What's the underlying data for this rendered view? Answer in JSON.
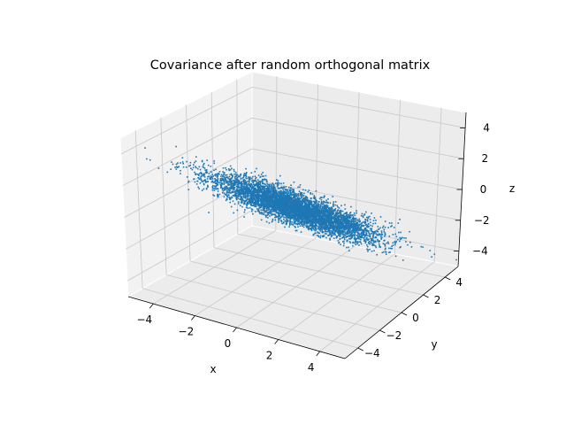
{
  "chart_data": {
    "type": "scatter",
    "projection": "3d",
    "title": "Covariance after random orthogonal matrix",
    "xlabel": "x",
    "ylabel": "y",
    "zlabel": "z",
    "xlim": [
      -5.2,
      5.2
    ],
    "ylim": [
      -5.2,
      5.2
    ],
    "zlim": [
      -5.0,
      5.0
    ],
    "x_ticks": [
      "−4",
      "−2",
      "0",
      "2",
      "4"
    ],
    "y_ticks": [
      "−4",
      "−2",
      "0",
      "2",
      "4"
    ],
    "z_ticks": [
      "−4",
      "−2",
      "0",
      "2",
      "4"
    ],
    "grid": true,
    "point_color": "#1f77b4",
    "point_count_approx": 10000,
    "distribution": {
      "description": "elongated 3D Gaussian cloud; principal direction runs from (x≈-5, y≈-5, z≈+4.5) to (x≈+5, y≈+5, z≈-4.5)",
      "principal_axis_endpoints": [
        [
          -5.0,
          -5.0,
          4.6
        ],
        [
          5.0,
          5.0,
          -4.6
        ]
      ],
      "spread_along_axis_sd": 1.6,
      "spread_across_axis_sd": 0.18
    }
  }
}
